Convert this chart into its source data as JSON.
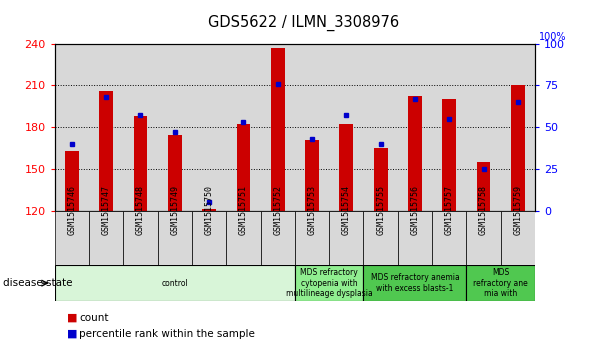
{
  "title": "GDS5622 / ILMN_3308976",
  "samples": [
    "GSM1515746",
    "GSM1515747",
    "GSM1515748",
    "GSM1515749",
    "GSM1515750",
    "GSM1515751",
    "GSM1515752",
    "GSM1515753",
    "GSM1515754",
    "GSM1515755",
    "GSM1515756",
    "GSM1515757",
    "GSM1515758",
    "GSM1515759"
  ],
  "counts": [
    163,
    206,
    188,
    174,
    121,
    182,
    237,
    171,
    182,
    165,
    202,
    200,
    155,
    210
  ],
  "percentiles": [
    40,
    68,
    57,
    47,
    5,
    53,
    76,
    43,
    57,
    40,
    67,
    55,
    25,
    65
  ],
  "ylim_left": [
    120,
    240
  ],
  "ylim_right": [
    0,
    100
  ],
  "yticks_left": [
    120,
    150,
    180,
    210,
    240
  ],
  "yticks_right": [
    0,
    25,
    50,
    75,
    100
  ],
  "bar_color": "#cc0000",
  "dot_color": "#0000cc",
  "col_bg_color": "#d8d8d8",
  "plot_bg": "#ffffff",
  "disease_groups": [
    {
      "label": "control",
      "start": 0,
      "end": 7,
      "color": "#d8f5d8"
    },
    {
      "label": "MDS refractory\ncytopenia with\nmultilineage dysplasia",
      "start": 7,
      "end": 9,
      "color": "#90ee90"
    },
    {
      "label": "MDS refractory anemia\nwith excess blasts-1",
      "start": 9,
      "end": 12,
      "color": "#50c850"
    },
    {
      "label": "MDS\nrefractory ane\nmia with",
      "start": 12,
      "end": 14,
      "color": "#50c850"
    }
  ],
  "legend_count_color": "#cc0000",
  "legend_pct_color": "#0000cc"
}
